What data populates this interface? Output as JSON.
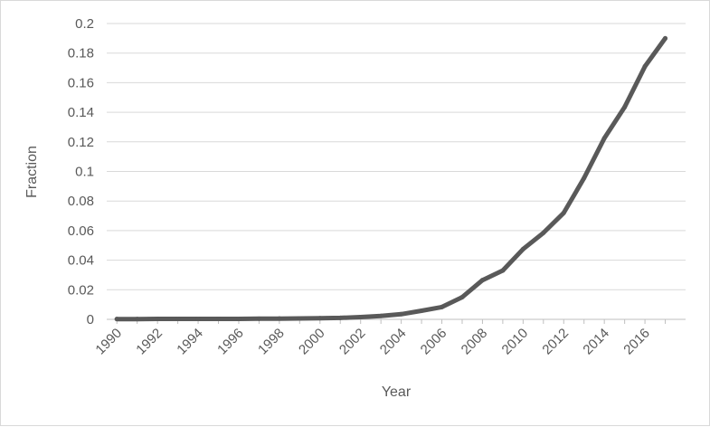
{
  "chart_data": {
    "type": "line",
    "title": "",
    "xlabel": "Year",
    "ylabel": "Fraction",
    "x": [
      1990,
      1991,
      1992,
      1993,
      1994,
      1995,
      1996,
      1997,
      1998,
      1999,
      2000,
      2001,
      2002,
      2003,
      2004,
      2005,
      2006,
      2007,
      2008,
      2009,
      2010,
      2011,
      2012,
      2013,
      2014,
      2015,
      2016,
      2017
    ],
    "x_tick_labels": [
      "1990",
      "1992",
      "1994",
      "1996",
      "1998",
      "2000",
      "2002",
      "2004",
      "2006",
      "2008",
      "2010",
      "2012",
      "2014",
      "2016"
    ],
    "y_tick_labels": [
      "0",
      "0.02",
      "0.04",
      "0.06",
      "0.08",
      "0.1",
      "0.12",
      "0.14",
      "0.16",
      "0.18",
      "0.2"
    ],
    "ylim": [
      0,
      0.2
    ],
    "grid": true,
    "legend": "none",
    "series": [
      {
        "color": "#595959",
        "values": [
          0.0002,
          0.0002,
          0.0003,
          0.0003,
          0.0003,
          0.0003,
          0.0003,
          0.0004,
          0.0005,
          0.0006,
          0.0008,
          0.001,
          0.0015,
          0.0023,
          0.0035,
          0.0058,
          0.0083,
          0.015,
          0.0265,
          0.033,
          0.0475,
          0.0585,
          0.072,
          0.0955,
          0.1225,
          0.1435,
          0.171,
          0.19
        ]
      }
    ]
  }
}
